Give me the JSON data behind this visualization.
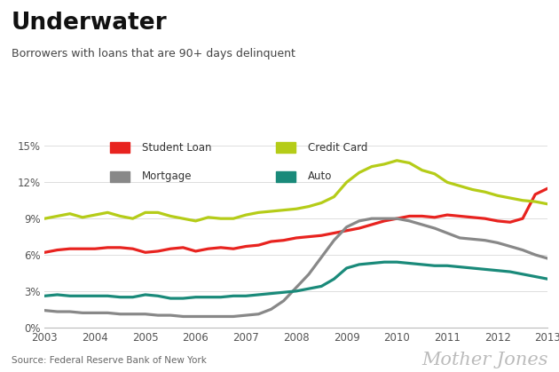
{
  "title": "Underwater",
  "subtitle": "Borrowers with loans that are 90+ days delinquent",
  "source": "Source: Federal Reserve Bank of New York",
  "watermark": "Mother Jones",
  "xlim": [
    2003,
    2013
  ],
  "ylim": [
    0,
    0.16
  ],
  "yticks": [
    0,
    0.03,
    0.06,
    0.09,
    0.12,
    0.15
  ],
  "ytick_labels": [
    "0%",
    "3%",
    "6%",
    "9%",
    "12%",
    "15%"
  ],
  "xticks": [
    2003,
    2004,
    2005,
    2006,
    2007,
    2008,
    2009,
    2010,
    2011,
    2012,
    2013
  ],
  "series": {
    "Student Loan": {
      "color": "#e8231f",
      "linewidth": 2.3,
      "x": [
        2003.0,
        2003.25,
        2003.5,
        2003.75,
        2004.0,
        2004.25,
        2004.5,
        2004.75,
        2005.0,
        2005.25,
        2005.5,
        2005.75,
        2006.0,
        2006.25,
        2006.5,
        2006.75,
        2007.0,
        2007.25,
        2007.5,
        2007.75,
        2008.0,
        2008.25,
        2008.5,
        2008.75,
        2009.0,
        2009.25,
        2009.5,
        2009.75,
        2010.0,
        2010.25,
        2010.5,
        2010.75,
        2011.0,
        2011.25,
        2011.5,
        2011.75,
        2012.0,
        2012.25,
        2012.5,
        2012.75,
        2013.0
      ],
      "y": [
        0.062,
        0.064,
        0.065,
        0.065,
        0.065,
        0.066,
        0.066,
        0.065,
        0.062,
        0.063,
        0.065,
        0.066,
        0.063,
        0.065,
        0.066,
        0.065,
        0.067,
        0.068,
        0.071,
        0.072,
        0.074,
        0.075,
        0.076,
        0.078,
        0.08,
        0.082,
        0.085,
        0.088,
        0.09,
        0.092,
        0.092,
        0.091,
        0.093,
        0.092,
        0.091,
        0.09,
        0.088,
        0.087,
        0.09,
        0.11,
        0.115
      ]
    },
    "Credit Card": {
      "color": "#b5cc18",
      "linewidth": 2.3,
      "x": [
        2003.0,
        2003.25,
        2003.5,
        2003.75,
        2004.0,
        2004.25,
        2004.5,
        2004.75,
        2005.0,
        2005.25,
        2005.5,
        2005.75,
        2006.0,
        2006.25,
        2006.5,
        2006.75,
        2007.0,
        2007.25,
        2007.5,
        2007.75,
        2008.0,
        2008.25,
        2008.5,
        2008.75,
        2009.0,
        2009.25,
        2009.5,
        2009.75,
        2010.0,
        2010.25,
        2010.5,
        2010.75,
        2011.0,
        2011.25,
        2011.5,
        2011.75,
        2012.0,
        2012.25,
        2012.5,
        2012.75,
        2013.0
      ],
      "y": [
        0.09,
        0.092,
        0.094,
        0.091,
        0.093,
        0.095,
        0.092,
        0.09,
        0.095,
        0.095,
        0.092,
        0.09,
        0.088,
        0.091,
        0.09,
        0.09,
        0.093,
        0.095,
        0.096,
        0.097,
        0.098,
        0.1,
        0.103,
        0.108,
        0.12,
        0.128,
        0.133,
        0.135,
        0.138,
        0.136,
        0.13,
        0.127,
        0.12,
        0.117,
        0.114,
        0.112,
        0.109,
        0.107,
        0.105,
        0.104,
        0.102
      ]
    },
    "Mortgage": {
      "color": "#888888",
      "linewidth": 2.3,
      "x": [
        2003.0,
        2003.25,
        2003.5,
        2003.75,
        2004.0,
        2004.25,
        2004.5,
        2004.75,
        2005.0,
        2005.25,
        2005.5,
        2005.75,
        2006.0,
        2006.25,
        2006.5,
        2006.75,
        2007.0,
        2007.25,
        2007.5,
        2007.75,
        2008.0,
        2008.25,
        2008.5,
        2008.75,
        2009.0,
        2009.25,
        2009.5,
        2009.75,
        2010.0,
        2010.25,
        2010.5,
        2010.75,
        2011.0,
        2011.25,
        2011.5,
        2011.75,
        2012.0,
        2012.25,
        2012.5,
        2012.75,
        2013.0
      ],
      "y": [
        0.014,
        0.013,
        0.013,
        0.012,
        0.012,
        0.012,
        0.011,
        0.011,
        0.011,
        0.01,
        0.01,
        0.009,
        0.009,
        0.009,
        0.009,
        0.009,
        0.01,
        0.011,
        0.015,
        0.022,
        0.033,
        0.044,
        0.058,
        0.072,
        0.083,
        0.088,
        0.09,
        0.09,
        0.09,
        0.088,
        0.085,
        0.082,
        0.078,
        0.074,
        0.073,
        0.072,
        0.07,
        0.067,
        0.064,
        0.06,
        0.057
      ]
    },
    "Auto": {
      "color": "#1a8a7a",
      "linewidth": 2.3,
      "x": [
        2003.0,
        2003.25,
        2003.5,
        2003.75,
        2004.0,
        2004.25,
        2004.5,
        2004.75,
        2005.0,
        2005.25,
        2005.5,
        2005.75,
        2006.0,
        2006.25,
        2006.5,
        2006.75,
        2007.0,
        2007.25,
        2007.5,
        2007.75,
        2008.0,
        2008.25,
        2008.5,
        2008.75,
        2009.0,
        2009.25,
        2009.5,
        2009.75,
        2010.0,
        2010.25,
        2010.5,
        2010.75,
        2011.0,
        2011.25,
        2011.5,
        2011.75,
        2012.0,
        2012.25,
        2012.5,
        2012.75,
        2013.0
      ],
      "y": [
        0.026,
        0.027,
        0.026,
        0.026,
        0.026,
        0.026,
        0.025,
        0.025,
        0.027,
        0.026,
        0.024,
        0.024,
        0.025,
        0.025,
        0.025,
        0.026,
        0.026,
        0.027,
        0.028,
        0.029,
        0.03,
        0.032,
        0.034,
        0.04,
        0.049,
        0.052,
        0.053,
        0.054,
        0.054,
        0.053,
        0.052,
        0.051,
        0.051,
        0.05,
        0.049,
        0.048,
        0.047,
        0.046,
        0.044,
        0.042,
        0.04
      ]
    }
  },
  "bg_color": "#ffffff",
  "plot_bg_color": "#ffffff",
  "legend_items": [
    [
      "Student Loan",
      "#e8231f",
      0
    ],
    [
      "Credit Card",
      "#b5cc18",
      1
    ],
    [
      "Mortgage",
      "#888888",
      2
    ],
    [
      "Auto",
      "#1a8a7a",
      3
    ]
  ]
}
